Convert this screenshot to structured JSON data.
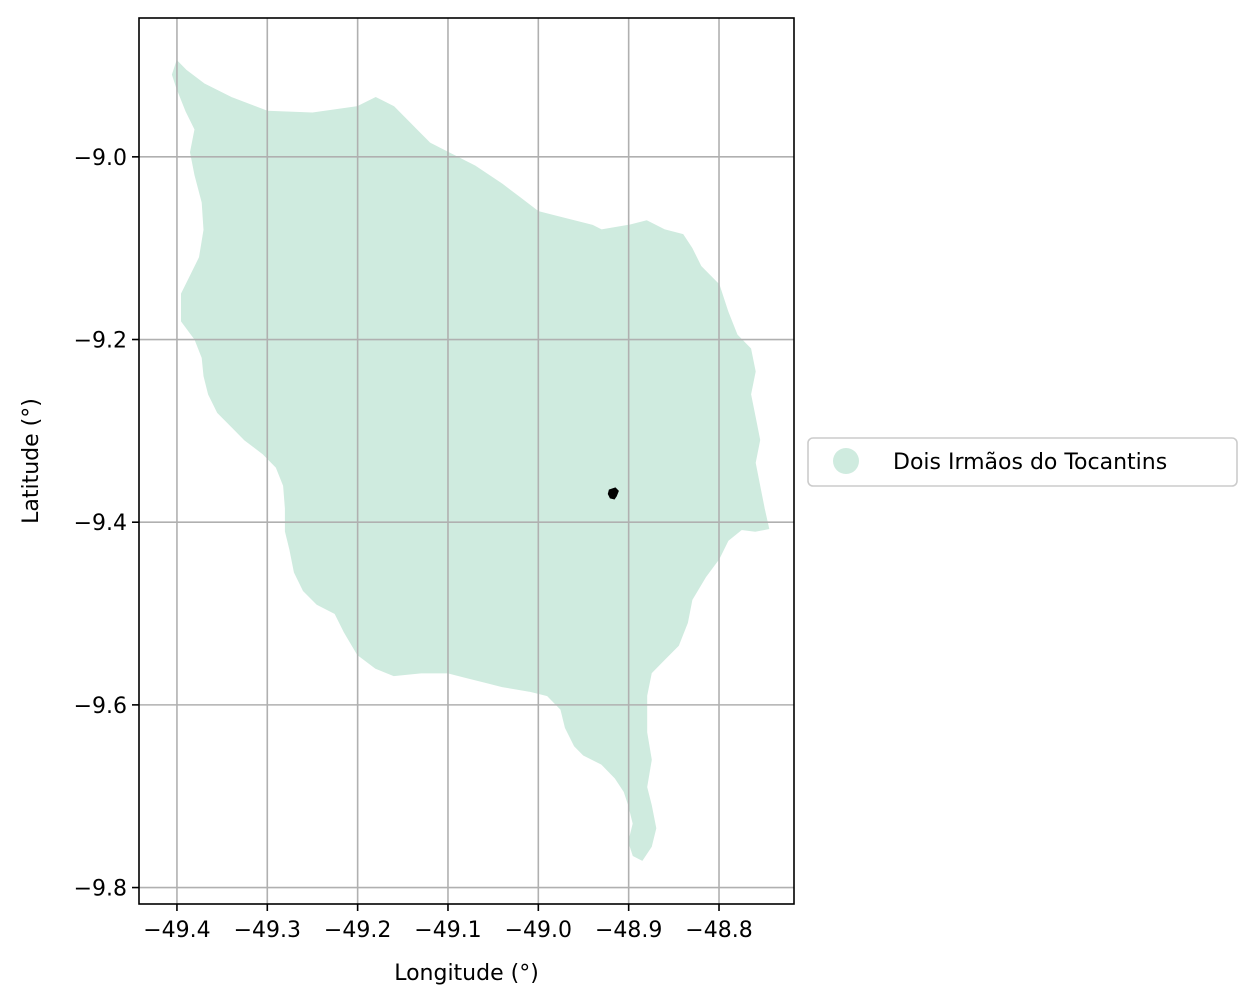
{
  "chart_data": {
    "type": "map",
    "xlabel": "Longitude (°)",
    "ylabel": "Latitude (°)",
    "xlim": [
      -49.442,
      -48.717
    ],
    "ylim": [
      -9.818,
      -8.848
    ],
    "grid": true,
    "x_ticks": [
      {
        "value": -49.4,
        "label": "−49.4"
      },
      {
        "value": -49.3,
        "label": "−49.3"
      },
      {
        "value": -49.2,
        "label": "−49.2"
      },
      {
        "value": -49.1,
        "label": "−49.1"
      },
      {
        "value": -49.0,
        "label": "−49.0"
      },
      {
        "value": -48.9,
        "label": "−48.9"
      },
      {
        "value": -48.8,
        "label": "−48.8"
      }
    ],
    "y_ticks": [
      {
        "value": -9.0,
        "label": "−9.0"
      },
      {
        "value": -9.2,
        "label": "−9.2"
      },
      {
        "value": -9.4,
        "label": "−9.4"
      },
      {
        "value": -9.6,
        "label": "−9.6"
      },
      {
        "value": -9.8,
        "label": "−9.8"
      }
    ],
    "legend": {
      "placement": "right",
      "entries": [
        {
          "label": "Dois Irmãos do Tocantins",
          "color": "#cfebdf"
        }
      ]
    },
    "region": {
      "name": "Dois Irmãos do Tocantins",
      "color": "#cfebdf",
      "boundary": [
        [
          -49.4,
          -8.895
        ],
        [
          -49.39,
          -8.905
        ],
        [
          -49.37,
          -8.92
        ],
        [
          -49.34,
          -8.935
        ],
        [
          -49.3,
          -8.95
        ],
        [
          -49.25,
          -8.952
        ],
        [
          -49.2,
          -8.945
        ],
        [
          -49.18,
          -8.935
        ],
        [
          -49.16,
          -8.945
        ],
        [
          -49.14,
          -8.965
        ],
        [
          -49.12,
          -8.985
        ],
        [
          -49.1,
          -8.995
        ],
        [
          -49.07,
          -9.01
        ],
        [
          -49.04,
          -9.03
        ],
        [
          -49.02,
          -9.045
        ],
        [
          -49.0,
          -9.06
        ],
        [
          -48.98,
          -9.065
        ],
        [
          -48.94,
          -9.075
        ],
        [
          -48.93,
          -9.08
        ],
        [
          -48.9,
          -9.075
        ],
        [
          -48.88,
          -9.07
        ],
        [
          -48.86,
          -9.08
        ],
        [
          -48.84,
          -9.085
        ],
        [
          -48.83,
          -9.1
        ],
        [
          -48.82,
          -9.12
        ],
        [
          -48.8,
          -9.14
        ],
        [
          -48.79,
          -9.17
        ],
        [
          -48.78,
          -9.195
        ],
        [
          -48.765,
          -9.21
        ],
        [
          -48.76,
          -9.235
        ],
        [
          -48.765,
          -9.26
        ],
        [
          -48.76,
          -9.285
        ],
        [
          -48.755,
          -9.31
        ],
        [
          -48.76,
          -9.335
        ],
        [
          -48.755,
          -9.36
        ],
        [
          -48.75,
          -9.385
        ],
        [
          -48.745,
          -9.407
        ],
        [
          -48.76,
          -9.41
        ],
        [
          -48.775,
          -9.408
        ],
        [
          -48.79,
          -9.42
        ],
        [
          -48.8,
          -9.44
        ],
        [
          -48.815,
          -9.46
        ],
        [
          -48.83,
          -9.485
        ],
        [
          -48.835,
          -9.51
        ],
        [
          -48.845,
          -9.535
        ],
        [
          -48.86,
          -9.55
        ],
        [
          -48.875,
          -9.565
        ],
        [
          -48.88,
          -9.59
        ],
        [
          -48.88,
          -9.61
        ],
        [
          -48.88,
          -9.63
        ],
        [
          -48.875,
          -9.66
        ],
        [
          -48.88,
          -9.69
        ],
        [
          -48.875,
          -9.71
        ],
        [
          -48.87,
          -9.735
        ],
        [
          -48.875,
          -9.755
        ],
        [
          -48.885,
          -9.77
        ],
        [
          -48.895,
          -9.765
        ],
        [
          -48.9,
          -9.75
        ],
        [
          -48.895,
          -9.73
        ],
        [
          -48.9,
          -9.71
        ],
        [
          -48.905,
          -9.695
        ],
        [
          -48.915,
          -9.68
        ],
        [
          -48.93,
          -9.665
        ],
        [
          -48.95,
          -9.655
        ],
        [
          -48.96,
          -9.645
        ],
        [
          -48.97,
          -9.625
        ],
        [
          -48.975,
          -9.605
        ],
        [
          -48.99,
          -9.59
        ],
        [
          -49.01,
          -9.585
        ],
        [
          -49.04,
          -9.58
        ],
        [
          -49.06,
          -9.575
        ],
        [
          -49.08,
          -9.57
        ],
        [
          -49.1,
          -9.565
        ],
        [
          -49.13,
          -9.565
        ],
        [
          -49.16,
          -9.568
        ],
        [
          -49.18,
          -9.56
        ],
        [
          -49.2,
          -9.545
        ],
        [
          -49.215,
          -9.52
        ],
        [
          -49.225,
          -9.5
        ],
        [
          -49.245,
          -9.49
        ],
        [
          -49.26,
          -9.475
        ],
        [
          -49.27,
          -9.455
        ],
        [
          -49.275,
          -9.43
        ],
        [
          -49.28,
          -9.41
        ],
        [
          -49.28,
          -9.385
        ],
        [
          -49.282,
          -9.36
        ],
        [
          -49.29,
          -9.34
        ],
        [
          -49.305,
          -9.325
        ],
        [
          -49.325,
          -9.31
        ],
        [
          -49.34,
          -9.295
        ],
        [
          -49.355,
          -9.28
        ],
        [
          -49.365,
          -9.26
        ],
        [
          -49.37,
          -9.24
        ],
        [
          -49.372,
          -9.22
        ],
        [
          -49.38,
          -9.2
        ],
        [
          -49.395,
          -9.18
        ],
        [
          -49.395,
          -9.15
        ],
        [
          -49.385,
          -9.13
        ],
        [
          -49.375,
          -9.11
        ],
        [
          -49.37,
          -9.08
        ],
        [
          -49.372,
          -9.05
        ],
        [
          -49.38,
          -9.02
        ],
        [
          -49.385,
          -8.995
        ],
        [
          -49.38,
          -8.97
        ],
        [
          -49.39,
          -8.95
        ],
        [
          -49.4,
          -8.925
        ],
        [
          -49.405,
          -8.91
        ]
      ]
    },
    "marker": {
      "lon": -48.917,
      "lat": -9.368,
      "color": "#000000"
    }
  }
}
